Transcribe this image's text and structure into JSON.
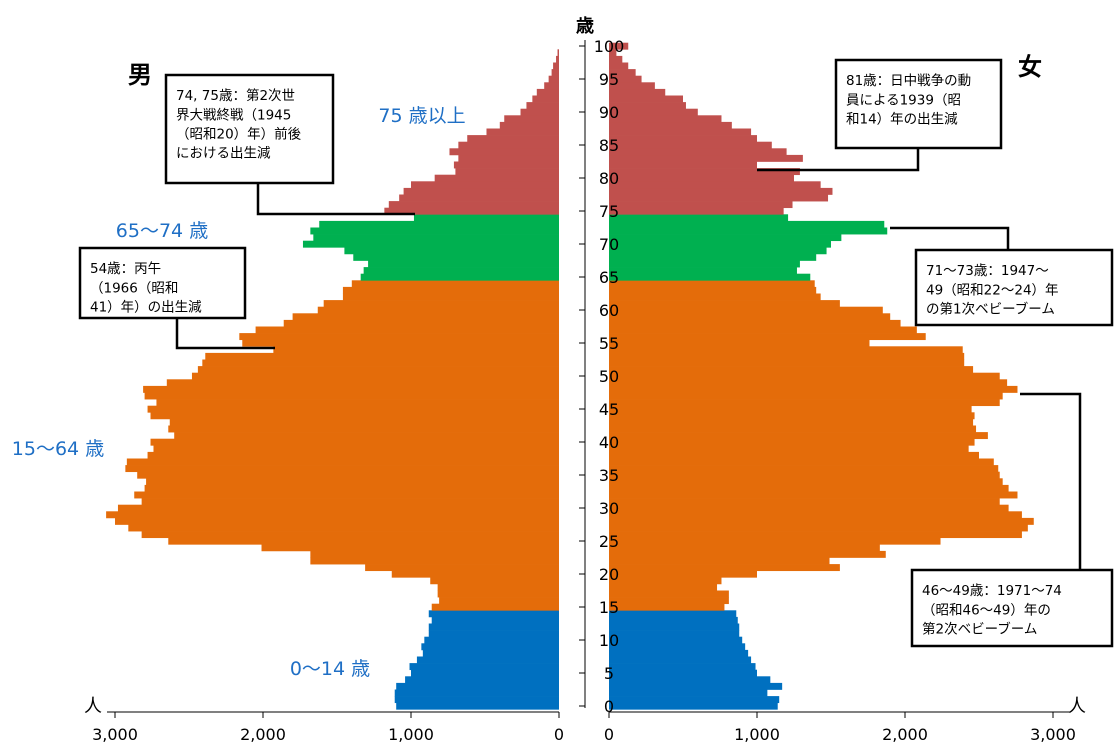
{
  "chart_data": {
    "type": "bar",
    "subtype": "population-pyramid",
    "y_axis_label": "歳",
    "left_side_label": "男",
    "right_side_label": "女",
    "axis_unit": "人",
    "xlim": [
      0,
      3000
    ],
    "ylim": [
      0,
      100
    ],
    "x_ticks": [
      "3,000",
      "2,000",
      "1,000",
      "0"
    ],
    "x_ticks_right": [
      "0",
      "1,000",
      "2,000",
      "3,000"
    ],
    "age_ticks": [
      "0",
      "5",
      "10",
      "15",
      "20",
      "25",
      "30",
      "35",
      "40",
      "45",
      "50",
      "55",
      "60",
      "65",
      "70",
      "75",
      "80",
      "85",
      "90",
      "95",
      "100"
    ],
    "age_groups": [
      {
        "label": "0〜14 歳",
        "from": 0,
        "to": 14,
        "color": "#0070c0"
      },
      {
        "label": "15〜64 歳",
        "from": 15,
        "to": 64,
        "color": "#e46c0a"
      },
      {
        "label": "65〜74 歳",
        "from": 65,
        "to": 74,
        "color": "#00b050"
      },
      {
        "label": "75 歳以上",
        "from": 75,
        "to": 100,
        "color": "#c0504d"
      }
    ],
    "ages": [
      0,
      1,
      2,
      3,
      4,
      5,
      6,
      7,
      8,
      9,
      10,
      11,
      12,
      13,
      14,
      15,
      16,
      17,
      18,
      19,
      20,
      21,
      22,
      23,
      24,
      25,
      26,
      27,
      28,
      29,
      30,
      31,
      32,
      33,
      34,
      35,
      36,
      37,
      38,
      39,
      40,
      41,
      42,
      43,
      44,
      45,
      46,
      47,
      48,
      49,
      50,
      51,
      52,
      53,
      54,
      55,
      56,
      57,
      58,
      59,
      60,
      61,
      62,
      63,
      64,
      65,
      66,
      67,
      68,
      69,
      70,
      71,
      72,
      73,
      74,
      75,
      76,
      77,
      78,
      79,
      80,
      81,
      82,
      83,
      84,
      85,
      86,
      87,
      88,
      89,
      90,
      91,
      92,
      93,
      94,
      95,
      96,
      97,
      98,
      99,
      100
    ],
    "series": [
      {
        "name": "男",
        "values": [
          1100,
          1110,
          1110,
          1100,
          1040,
          1000,
          1010,
          960,
          920,
          930,
          910,
          880,
          880,
          860,
          880,
          860,
          810,
          820,
          820,
          870,
          1130,
          1310,
          1680,
          1680,
          2010,
          2640,
          2820,
          2910,
          3000,
          3060,
          2980,
          2820,
          2870,
          2800,
          2790,
          2850,
          2930,
          2920,
          2780,
          2740,
          2760,
          2600,
          2640,
          2630,
          2760,
          2780,
          2720,
          2800,
          2810,
          2650,
          2480,
          2440,
          2410,
          2390,
          1930,
          2140,
          2160,
          2050,
          1860,
          1800,
          1630,
          1590,
          1460,
          1460,
          1400,
          1340,
          1320,
          1290,
          1390,
          1450,
          1730,
          1660,
          1680,
          1620,
          980,
          1180,
          1150,
          1080,
          1050,
          1000,
          840,
          700,
          710,
          680,
          740,
          680,
          620,
          490,
          400,
          370,
          260,
          220,
          180,
          150,
          100,
          70,
          50,
          40,
          20,
          10,
          0
        ],
        "color_by_group": true
      },
      {
        "name": "女",
        "values": [
          1140,
          1150,
          1070,
          1170,
          1090,
          1000,
          990,
          960,
          940,
          920,
          900,
          880,
          880,
          870,
          860,
          780,
          810,
          810,
          730,
          760,
          1000,
          1560,
          1490,
          1870,
          1830,
          2240,
          2790,
          2830,
          2870,
          2790,
          2700,
          2640,
          2760,
          2700,
          2660,
          2640,
          2630,
          2600,
          2500,
          2430,
          2470,
          2560,
          2480,
          2460,
          2470,
          2450,
          2640,
          2660,
          2760,
          2690,
          2640,
          2460,
          2400,
          2400,
          2390,
          1760,
          2140,
          2080,
          1970,
          1900,
          1850,
          1560,
          1430,
          1400,
          1390,
          1360,
          1270,
          1290,
          1400,
          1470,
          1500,
          1570,
          1880,
          1860,
          1210,
          1180,
          1240,
          1480,
          1510,
          1430,
          1250,
          1290,
          1000,
          1310,
          1200,
          1100,
          1000,
          960,
          830,
          760,
          600,
          520,
          500,
          380,
          310,
          220,
          180,
          130,
          90,
          50,
          130
        ],
        "color_by_group": true
      }
    ],
    "annotations": [
      {
        "text": "74, 75歳：第2次世界大戦終戦（1945（昭和20）年）前後における出生減",
        "lines": [
          "74, 75歳：第2次世",
          "界大戦終戦（1945",
          "（昭和20）年）前後",
          "における出生減"
        ]
      },
      {
        "text": "54歳：丙午（1966（昭和41）年）の出生減",
        "lines": [
          "54歳：丙午",
          "（1966（昭和",
          "41）年）の出生減"
        ]
      },
      {
        "text": "81歳：日中戦争の動員による1939（昭和14）年の出生減",
        "lines": [
          "81歳：日中戦争の動",
          "員による1939（昭",
          "和14）年の出生減"
        ]
      },
      {
        "text": "71〜73歳：1947〜49（昭和22〜24）年の第1次ベビーブーム",
        "lines": [
          "71〜73歳：1947〜",
          "49（昭和22〜24）年",
          "の第1次ベビーブーム"
        ]
      },
      {
        "text": "46〜49歳：1971〜74（昭和46〜49）年の第2次ベビーブーム",
        "lines": [
          "46〜49歳：1971〜74",
          "（昭和46〜49）年の",
          "第2次ベビーブーム"
        ]
      }
    ]
  }
}
